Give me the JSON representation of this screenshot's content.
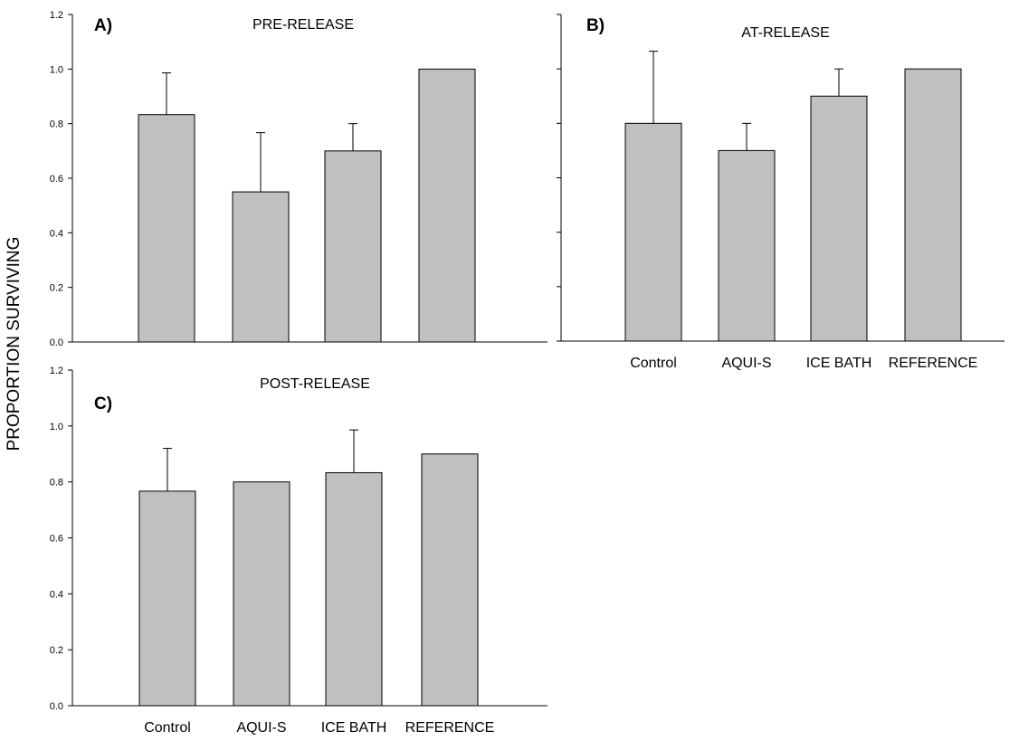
{
  "chart_data": [
    {
      "type": "bar",
      "panel_letter": "A)",
      "title": "PRE-RELEASE",
      "categories": [
        "Control",
        "AQUI-S",
        "ICE BATH",
        "REFERENCE"
      ],
      "values": [
        0.833,
        0.55,
        0.7,
        1.0
      ],
      "error_upper": [
        0.153,
        0.217,
        0.1,
        0.0
      ],
      "ylim": [
        0,
        1.2
      ],
      "yticks": [
        "0.0",
        "0.2",
        "0.4",
        "0.6",
        "0.8",
        "1.0",
        "1.2"
      ],
      "show_category_labels": false,
      "show_y_tick_labels": true,
      "bar_color": "#c0c0c0"
    },
    {
      "type": "bar",
      "panel_letter": "B)",
      "title": "AT-RELEASE",
      "categories": [
        "Control",
        "AQUI-S",
        "ICE BATH",
        "REFERENCE"
      ],
      "values": [
        0.8,
        0.7,
        0.9,
        1.0
      ],
      "error_upper": [
        0.265,
        0.1,
        0.1,
        0.0
      ],
      "ylim": [
        0,
        1.2
      ],
      "yticks": [
        "0.0",
        "0.2",
        "0.4",
        "0.6",
        "0.8",
        "1.0",
        "1.2"
      ],
      "show_category_labels": true,
      "show_y_tick_labels": false,
      "bar_color": "#c0c0c0"
    },
    {
      "type": "bar",
      "panel_letter": "C)",
      "title": "POST-RELEASE",
      "categories": [
        "Control",
        "AQUI-S",
        "ICE BATH",
        "REFERENCE"
      ],
      "values": [
        0.767,
        0.8,
        0.833,
        0.9
      ],
      "error_upper": [
        0.153,
        0.0,
        0.153,
        0.0
      ],
      "ylim": [
        0,
        1.2
      ],
      "yticks": [
        "0.0",
        "0.2",
        "0.4",
        "0.6",
        "0.8",
        "1.0",
        "1.2"
      ],
      "show_category_labels": true,
      "show_y_tick_labels": true,
      "bar_color": "#c0c0c0"
    }
  ],
  "shared_ylabel": "PROPORTION SURVIVING"
}
